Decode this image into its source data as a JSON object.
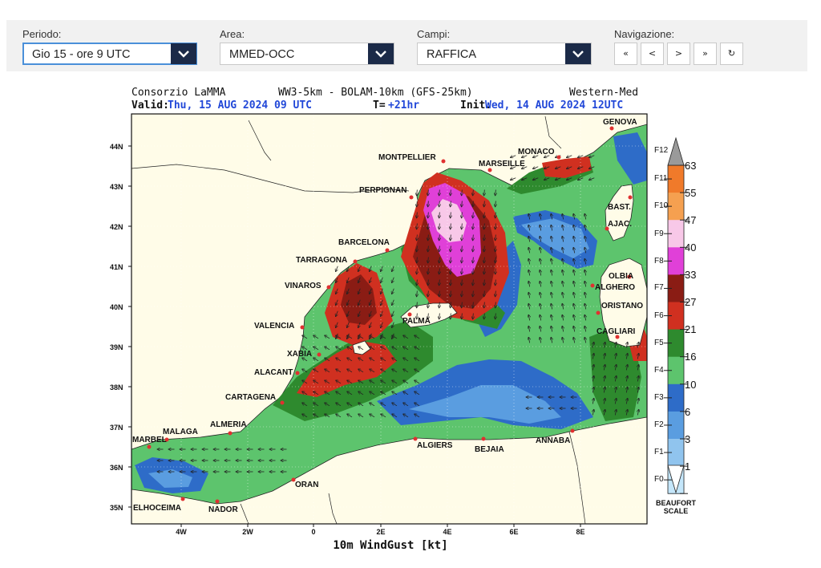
{
  "toolbar": {
    "periodo": {
      "label": "Periodo:",
      "value": "Gio 15 - ore 9 UTC"
    },
    "area": {
      "label": "Area:",
      "value": "MMED-OCC"
    },
    "campi": {
      "label": "Campi:",
      "value": "RAFFICA"
    },
    "navigazione": {
      "label": "Navigazione:",
      "buttons": [
        "«",
        "<",
        ">",
        "»",
        "↻"
      ]
    }
  },
  "map": {
    "header_left": "Consorzio LaMMA",
    "header_center": "WW3-5km - BOLAM-10km (GFS-25km)",
    "header_right": "Western-Med",
    "valid_label": "Valid:",
    "valid_value": "Thu, 15 AUG 2024  09 UTC",
    "t_label": "T=",
    "t_value": "+21hr",
    "init_label": "Init:",
    "init_value": "Wed, 14 AUG 2024 12UTC",
    "xlabel": "10m WindGust [kt]",
    "lat_ticks": [
      "44N",
      "43N",
      "42N",
      "41N",
      "40N",
      "39N",
      "38N",
      "37N",
      "36N",
      "35N"
    ],
    "lon_ticks": [
      "4W",
      "2W",
      "0",
      "2E",
      "4E",
      "6E",
      "8E"
    ],
    "cities": [
      "GENOVA",
      "MONACO",
      "MONTPELLIER",
      "MARSEILLE",
      "PERPIGNAN",
      "BAST.",
      "AJAC.",
      "BARCELONA",
      "TARRAGONA",
      "OLBIA",
      "ALGHERO",
      "VINAROS",
      "ORISTANO",
      "PALMA",
      "VALENCIA",
      "CAGLIARI",
      "XABIA",
      "ALACANT",
      "CARTAGENA",
      "ALMERIA",
      "MALAGA",
      "MARBEL",
      "ALGIERS",
      "BEJAIA",
      "ANNABA",
      "ORAN",
      "ELHOCEIMA",
      "NADOR"
    ]
  },
  "legend": {
    "beaufort": [
      "F12",
      "F11",
      "F10",
      "F9",
      "F8",
      "F7",
      "F6",
      "F5",
      "F4",
      "F3",
      "F2",
      "F1",
      "F0"
    ],
    "knots": [
      "63",
      "55",
      "47",
      "40",
      "33",
      "27",
      "21",
      "16",
      "10",
      "6",
      "3",
      "1"
    ],
    "colors": [
      "#f07a2a",
      "#f5a050",
      "#f8c8e8",
      "#e040d8",
      "#8a1c14",
      "#d03020",
      "#2e8a2e",
      "#5dc46d",
      "#2e6cc8",
      "#5a9de0",
      "#90c4ee",
      "#c4e6fa"
    ],
    "title_line1": "BEAUFORT",
    "title_line2": "SCALE"
  }
}
